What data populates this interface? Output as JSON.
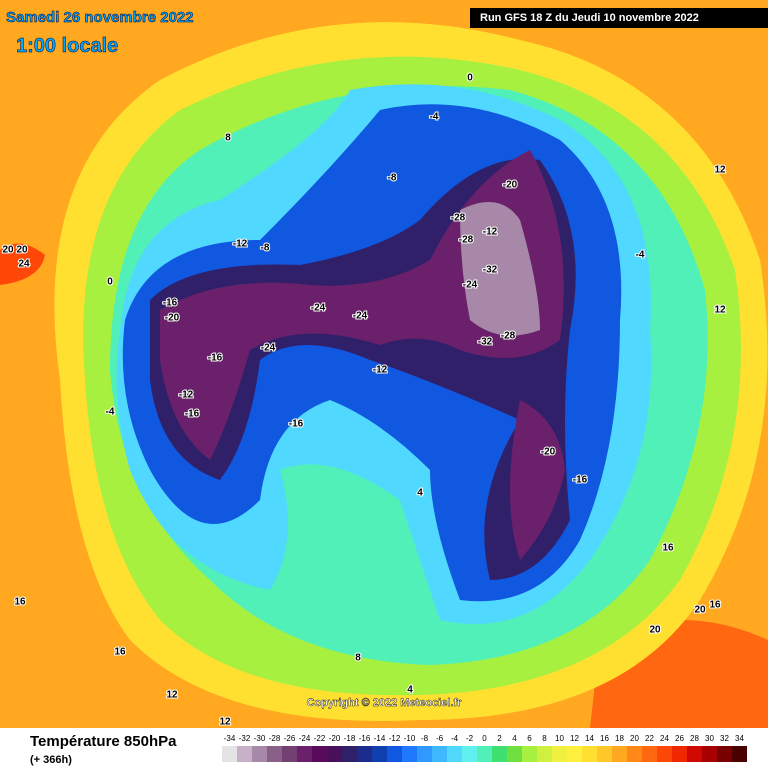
{
  "header": {
    "date": "Samedi 26 novembre 2022",
    "time": "1:00 locale",
    "run": "Run GFS 18 Z du Jeudi 10 novembre 2022"
  },
  "copyright": "Copyright © 2022 Meteociel.fr",
  "footer": {
    "title": "Température 850hPa",
    "lead": "(+ 366h)"
  },
  "legend": {
    "labels": [
      -34,
      -32,
      -30,
      -28,
      -26,
      -24,
      -22,
      -20,
      -18,
      -16,
      -14,
      -12,
      -10,
      -8,
      -6,
      -4,
      -2,
      0,
      2,
      4,
      6,
      8,
      10,
      12,
      14,
      16,
      18,
      20,
      22,
      24,
      26,
      28,
      30,
      32,
      34
    ],
    "colors": [
      "#e4e4e4",
      "#c8b0c8",
      "#a888a8",
      "#886088",
      "#744074",
      "#6a206a",
      "#5a0a5a",
      "#48105a",
      "#30206a",
      "#1c2c8c",
      "#1040b0",
      "#1058e0",
      "#2078ff",
      "#3098ff",
      "#40b8ff",
      "#50d8ff",
      "#60f0f0",
      "#50f0b8",
      "#40e070",
      "#70e040",
      "#a8f040",
      "#d0f040",
      "#f0f040",
      "#fff040",
      "#ffe030",
      "#ffc828",
      "#ffa820",
      "#ff8818",
      "#ff6810",
      "#ff4808",
      "#f02800",
      "#d00800",
      "#a80000",
      "#780000",
      "#480000"
    ]
  },
  "map_labels": [
    20,
    20,
    -28,
    -12,
    -28,
    -32,
    -24,
    -28,
    -32,
    -20,
    -24,
    -24,
    -16,
    -20,
    -24,
    -16,
    -12,
    -16,
    -12,
    -20,
    -16,
    -8,
    -4,
    0,
    4,
    8,
    12,
    16,
    12,
    16,
    -12,
    -8,
    -16,
    -4,
    0,
    8,
    12,
    16,
    20,
    24,
    -4,
    4,
    12,
    16,
    20
  ]
}
